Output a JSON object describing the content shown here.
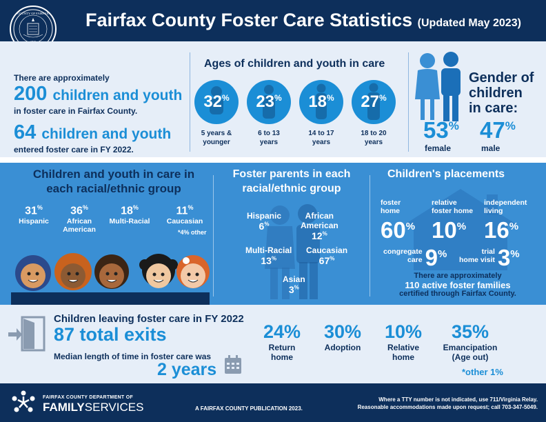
{
  "header": {
    "seal_text_top": "COUNTY OF FAIRFAX",
    "seal_year": "1742",
    "seal_text_bottom": "VIRGINIA",
    "title": "Fairfax County Foster Care Statistics",
    "updated": "(Updated May 2023)"
  },
  "overview": {
    "approx_text": "There are approximately",
    "children_count": "200",
    "children_label": "children and youth",
    "in_care_text": "in foster care in Fairfax County.",
    "entered_count": "64",
    "entered_label": "children and youth",
    "entered_text": "entered foster care in FY 2022."
  },
  "ages": {
    "title": "Ages of children and youth in care",
    "groups": [
      {
        "pct": "32",
        "label_line1": "5 years &",
        "label_line2": "younger"
      },
      {
        "pct": "23",
        "label_line1": "6 to 13",
        "label_line2": "years"
      },
      {
        "pct": "18",
        "label_line1": "14 to 17",
        "label_line2": "years"
      },
      {
        "pct": "27",
        "label_line1": "18 to 20",
        "label_line2": "years"
      }
    ]
  },
  "gender": {
    "title_line1": "Gender of",
    "title_line2": "children",
    "title_line3": "in care:",
    "female_pct": "53",
    "female_label": "female",
    "male_pct": "47",
    "male_label": "male"
  },
  "race": {
    "title_line1": "Children and youth in care in",
    "title_line2": "each racial/ethnic group",
    "groups": [
      {
        "pct": "31",
        "label_line1": "Hispanic",
        "label_line2": ""
      },
      {
        "pct": "36",
        "label_line1": "African",
        "label_line2": "American"
      },
      {
        "pct": "18",
        "label_line1": "Multi-Racial",
        "label_line2": ""
      },
      {
        "pct": "11",
        "label_line1": "Caucasian",
        "label_line2": ""
      }
    ],
    "other_note": "*4% other"
  },
  "foster_parents": {
    "title_line1": "Foster parents in each",
    "title_line2": "racial/ethnic group",
    "hispanic_label": "Hispanic",
    "hispanic_pct": "6",
    "african_label_line1": "African",
    "african_label_line2": "American",
    "african_pct": "12",
    "multi_label": "Multi-Racial",
    "multi_pct": "13",
    "caucasian_label": "Caucasian",
    "caucasian_pct": "67",
    "asian_label": "Asian",
    "asian_pct": "3"
  },
  "placements": {
    "title": "Children's placements",
    "foster_home_line1": "foster",
    "foster_home_line2": "home",
    "foster_home_pct": "60",
    "relative_line1": "relative",
    "relative_line2": "foster home",
    "relative_pct": "10",
    "independent_line1": "independent",
    "independent_line2": "living",
    "independent_pct": "16",
    "congregate_line1": "congregate",
    "congregate_line2": "care",
    "congregate_pct": "9",
    "trial_line1": "trial",
    "trial_line2": "home visit",
    "trial_pct": "3",
    "families_line1": "There are approximately",
    "families_line2": "110 active foster families",
    "families_line3": "certified through Fairfax County."
  },
  "exits": {
    "title": "Children leaving foster care in FY 2022",
    "total": "87 total exits",
    "median_text": "Median length of time in foster care was",
    "median_value": "2 years",
    "items": [
      {
        "pct": "24%",
        "label_line1": "Return",
        "label_line2": "home"
      },
      {
        "pct": "30%",
        "label_line1": "Adoption",
        "label_line2": ""
      },
      {
        "pct": "10%",
        "label_line1": "Relative",
        "label_line2": "home"
      },
      {
        "pct": "35%",
        "label_line1": "Emancipation",
        "label_line2": "(Age out)"
      }
    ],
    "other_note": "*other 1%"
  },
  "footer": {
    "dept_small": "FAIRFAX COUNTY DEPARTMENT OF",
    "dept_family": "FAMILY",
    "dept_services": "SERVICES",
    "publication": "A FAIRFAX COUNTY PUBLICATION 2023.",
    "tty_line1": "Where a TTY number is not indicated, use 711/Virginia Relay.",
    "tty_line2": "Reasonable accommodations made upon request; call 703-347-5049."
  },
  "colors": {
    "navy": "#0d2f5b",
    "accent_blue": "#1b8ed6",
    "band_blue": "#3a8fd4",
    "light_bg": "#e6eef8"
  }
}
